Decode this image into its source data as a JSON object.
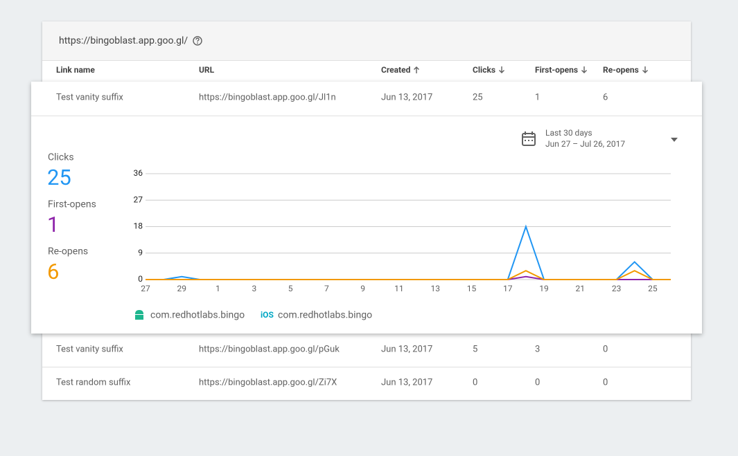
{
  "header": {
    "url": "https://bingoblast.app.goo.gl/"
  },
  "table": {
    "columns": [
      "Link name",
      "URL",
      "Created",
      "Clicks",
      "First-opens",
      "Re-opens"
    ],
    "rows": [
      [
        "Test vanity suffix",
        "https://bingoblast.app.goo.gl/Jl1n",
        "Jun 13, 2017",
        25,
        1,
        6
      ],
      [
        "Test vanity suffix",
        "https://bingoblast.app.goo.gl/pGuk",
        "Jun 13, 2017",
        5,
        3,
        0
      ],
      [
        "Test random suffix",
        "https://bingoblast.app.goo.gl/Zi7X",
        "Jun 13, 2017",
        0,
        0,
        0
      ]
    ]
  },
  "date_range": {
    "label": "Last 30 days",
    "range": "Jun 27 – Jul 26, 2017"
  },
  "chart_data": {
    "type": "line",
    "categories": [
      "27",
      null,
      "29",
      null,
      "1",
      null,
      "3",
      null,
      "5",
      null,
      "7",
      null,
      "9",
      null,
      "11",
      null,
      "13",
      null,
      "15",
      null,
      "17",
      null,
      "19",
      null,
      "21",
      null,
      "23",
      null,
      "25",
      null
    ],
    "series": [
      {
        "name": "Clicks",
        "color": "#2196f3",
        "total": 25,
        "values": [
          0,
          0,
          1,
          0,
          0,
          0,
          0,
          0,
          0,
          0,
          0,
          0,
          0,
          0,
          0,
          0,
          0,
          0,
          0,
          0,
          0,
          18,
          0,
          0,
          0,
          0,
          0,
          6,
          0,
          0
        ]
      },
      {
        "name": "First-opens",
        "color": "#8e24aa",
        "total": 1,
        "values": [
          0,
          0,
          0,
          0,
          0,
          0,
          0,
          0,
          0,
          0,
          0,
          0,
          0,
          0,
          0,
          0,
          0,
          0,
          0,
          0,
          0,
          1,
          0,
          0,
          0,
          0,
          0,
          0,
          0,
          0
        ]
      },
      {
        "name": "Re-opens",
        "color": "#f29900",
        "total": 6,
        "values": [
          0,
          0,
          0,
          0,
          0,
          0,
          0,
          0,
          0,
          0,
          0,
          0,
          0,
          0,
          0,
          0,
          0,
          0,
          0,
          0,
          0,
          3,
          0,
          0,
          0,
          0,
          0,
          3,
          0,
          0
        ]
      }
    ],
    "ylim": [
      0,
      36
    ],
    "yticks": [
      0,
      9,
      18,
      27,
      36
    ],
    "grid": true,
    "legend": [
      {
        "label": "com.redhotlabs.bingo"
      },
      {
        "icon_text": "iOS",
        "label": "com.redhotlabs.bingo"
      }
    ]
  }
}
